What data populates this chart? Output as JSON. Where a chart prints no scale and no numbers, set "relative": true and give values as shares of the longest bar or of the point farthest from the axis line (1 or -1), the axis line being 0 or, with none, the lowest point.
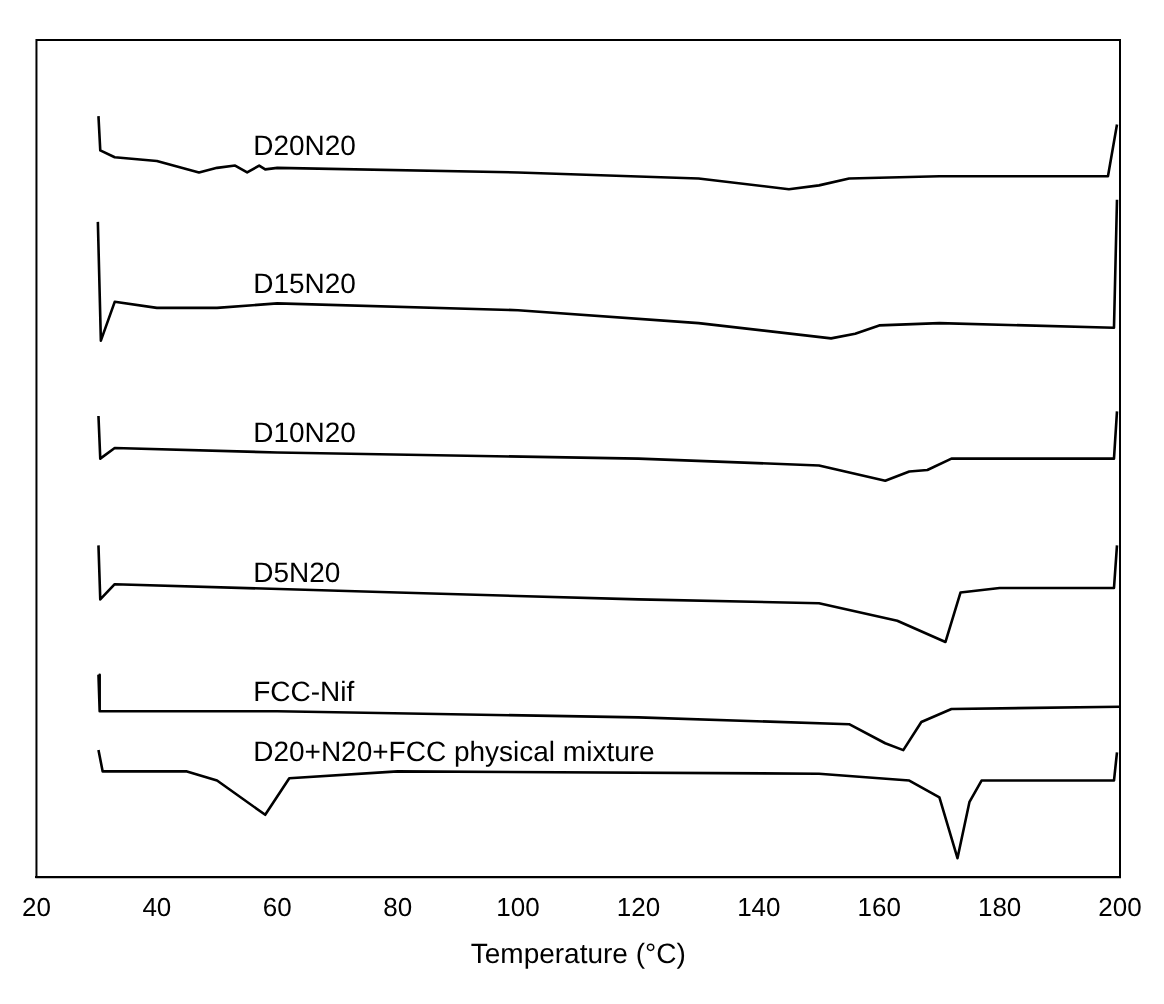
{
  "chart_data": {
    "type": "line",
    "relative": true,
    "xlabel": "Temperature (°C)",
    "xlim": [
      20,
      200
    ],
    "xticks": [
      20,
      40,
      60,
      80,
      100,
      120,
      140,
      160,
      180,
      200
    ],
    "grid": false,
    "legend": false,
    "marker": "none",
    "line_style": "solid",
    "series": [
      {
        "name": "D20N20",
        "color": "#000000",
        "x": [
          30.3,
          30.6,
          33,
          40,
          47,
          50,
          53,
          55,
          57,
          58,
          60,
          100,
          130,
          145,
          150,
          155,
          170,
          198,
          199.5
        ],
        "values": [
          1,
          0.955,
          0.946,
          0.941,
          0.926,
          0.932,
          0.935,
          0.926,
          0.935,
          0.93,
          0.932,
          0.926,
          0.918,
          0.904,
          0.909,
          0.918,
          0.921,
          0.921,
          0.989
        ]
      },
      {
        "name": "D15N20",
        "color": "#000000",
        "x": [
          30.2,
          30.7,
          33,
          40,
          50,
          60,
          100,
          130,
          152,
          156,
          160,
          170,
          199,
          199.5
        ],
        "values": [
          0.861,
          0.705,
          0.756,
          0.748,
          0.748,
          0.754,
          0.745,
          0.728,
          0.708,
          0.714,
          0.725,
          0.728,
          0.722,
          0.89
        ]
      },
      {
        "name": "D10N20",
        "color": "#000000",
        "x": [
          30.3,
          30.6,
          33,
          60,
          120,
          150,
          161,
          165,
          168,
          172,
          199,
          199.5
        ],
        "values": [
          0.606,
          0.55,
          0.564,
          0.558,
          0.55,
          0.541,
          0.521,
          0.533,
          0.535,
          0.55,
          0.55,
          0.612
        ]
      },
      {
        "name": "D5N20",
        "color": "#000000",
        "x": [
          30.3,
          30.6,
          33,
          80,
          120,
          150,
          163,
          171,
          173.5,
          180,
          199,
          199.5
        ],
        "values": [
          0.436,
          0.365,
          0.385,
          0.374,
          0.365,
          0.36,
          0.337,
          0.309,
          0.374,
          0.38,
          0.38,
          0.436
        ]
      },
      {
        "name": "FCC-Nif",
        "color": "#000000",
        "x": [
          30.3,
          30.5,
          60,
          120,
          155,
          161,
          164,
          167,
          172,
          200
        ],
        "values": [
          0.266,
          0.218,
          0.218,
          0.21,
          0.201,
          0.176,
          0.167,
          0.204,
          0.221,
          0.224
        ]
      },
      {
        "name": "D20+N20+FCC physical mixture",
        "color": "#000000",
        "x": [
          30.3,
          31,
          45,
          50,
          58,
          62,
          80,
          150,
          165,
          170,
          173,
          175,
          177,
          199,
          199.5
        ],
        "values": [
          0.167,
          0.139,
          0.139,
          0.127,
          0.082,
          0.13,
          0.139,
          0.136,
          0.127,
          0.105,
          0.025,
          0.099,
          0.127,
          0.127,
          0.164
        ]
      }
    ]
  }
}
